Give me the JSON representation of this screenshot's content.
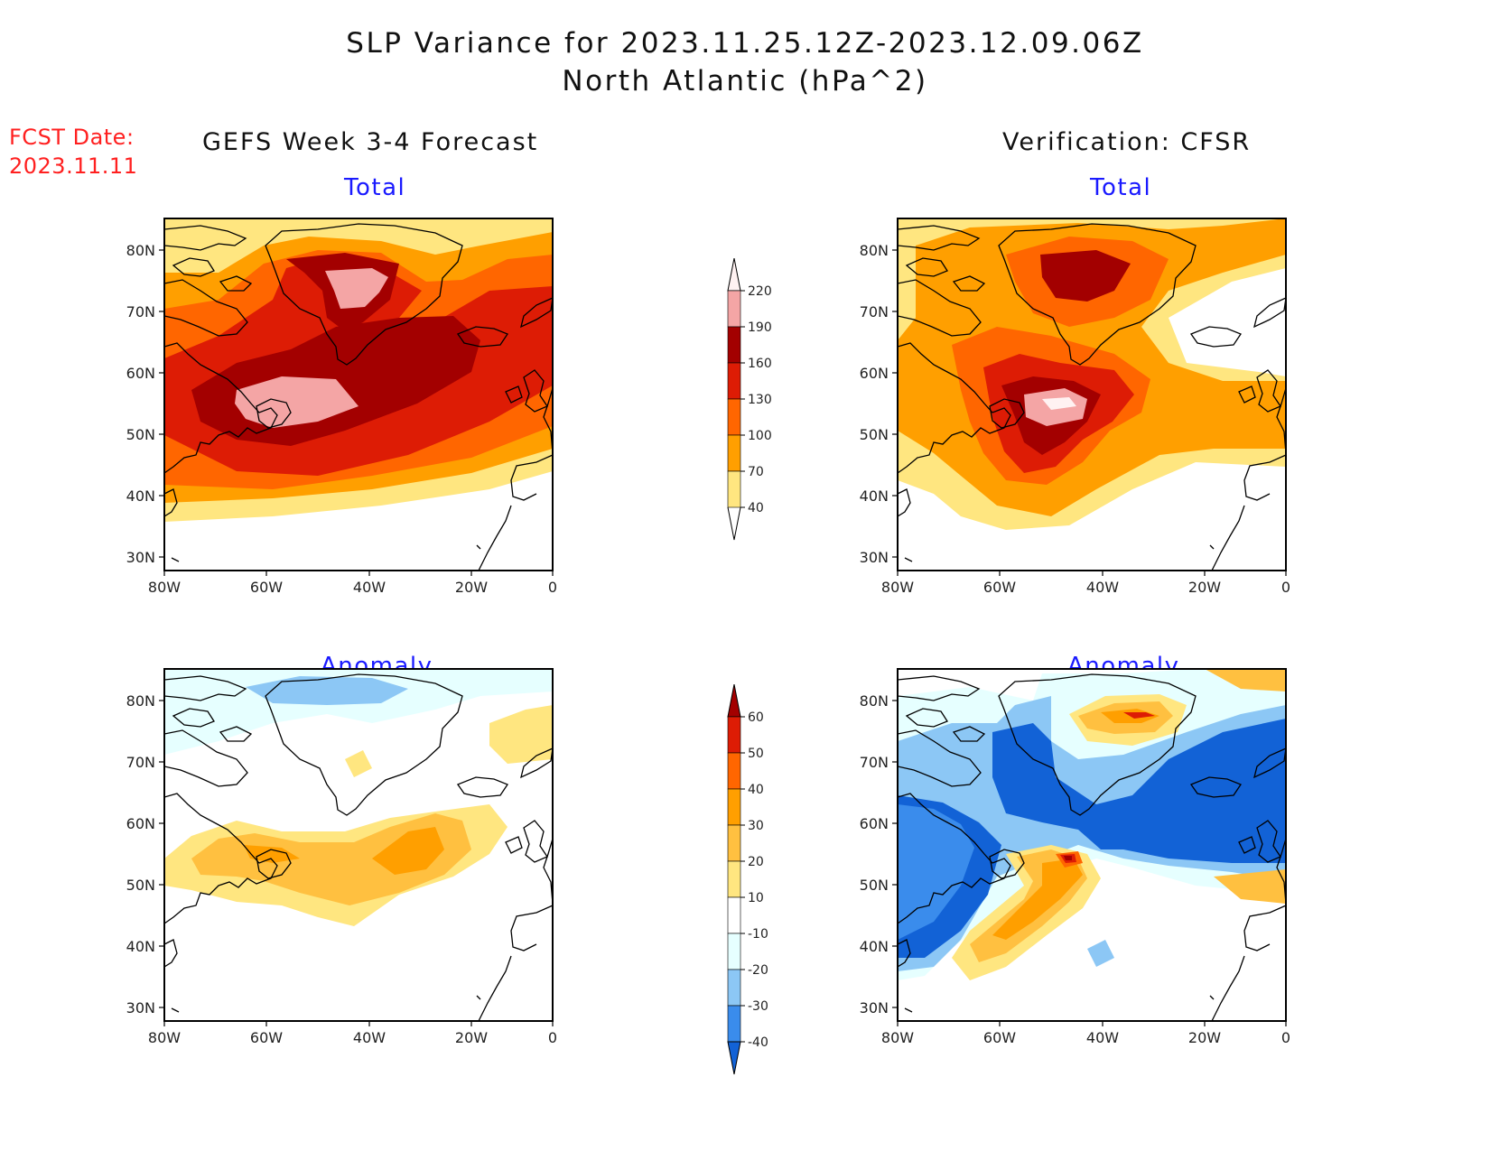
{
  "title": {
    "line1": "SLP Variance for 2023.11.25.12Z-2023.12.09.06Z",
    "line2": "North Atlantic (hPa^2)"
  },
  "fcst": {
    "label": "FCST Date:",
    "date": "2023.11.11"
  },
  "columns": {
    "left": "GEFS Week 3-4 Forecast",
    "right": "Verification: CFSR"
  },
  "panels": {
    "total_label": "Total",
    "anomaly_label": "Anomaly"
  },
  "axes": {
    "lat_labels": [
      "80N",
      "70N",
      "60N",
      "50N",
      "40N",
      "30N"
    ],
    "lon_labels": [
      "80W",
      "60W",
      "40W",
      "20W",
      "0"
    ]
  },
  "colorbars": {
    "total": {
      "levels": [
        "220",
        "190",
        "160",
        "130",
        "100",
        "70",
        "40"
      ],
      "colors": [
        "#fff2f2",
        "#f4a5a5",
        "#a30000",
        "#dd1c05",
        "#ff6600",
        "#ff9f00",
        "#ffe680"
      ]
    },
    "anomaly": {
      "levels": [
        "60",
        "50",
        "40",
        "30",
        "20",
        "10",
        "-10",
        "-20",
        "-30",
        "-40"
      ],
      "colors": [
        "#a30000",
        "#dd1c05",
        "#ff6600",
        "#ff9f00",
        "#ffc040",
        "#ffe680",
        "#ffffff",
        "#e6ffff",
        "#8cc7f5",
        "#3a8cec",
        "#1262d6"
      ]
    }
  },
  "map_data": {
    "region": "North Atlantic",
    "lat_range": [
      "25N",
      "85N"
    ],
    "lon_range": [
      "80W",
      "0"
    ],
    "panels": [
      {
        "name": "GEFS Week 3-4 Forecast - Total",
        "max_near": "50N 50W and 72N 42W",
        "peak_bin": "190-220"
      },
      {
        "name": "Verification: CFSR - Total",
        "max_near": "50N 45W",
        "peak_bin": ">220"
      },
      {
        "name": "GEFS Week 3-4 Forecast - Anomaly",
        "max_near": "52N 30W",
        "peak_bin": "20-30"
      },
      {
        "name": "Verification: CFSR - Anomaly",
        "max_near": "52N 45W",
        "peak_bin": ">60",
        "min_region": "Greenland/Iceland to Europe",
        "min_bin": "<-40"
      }
    ]
  }
}
